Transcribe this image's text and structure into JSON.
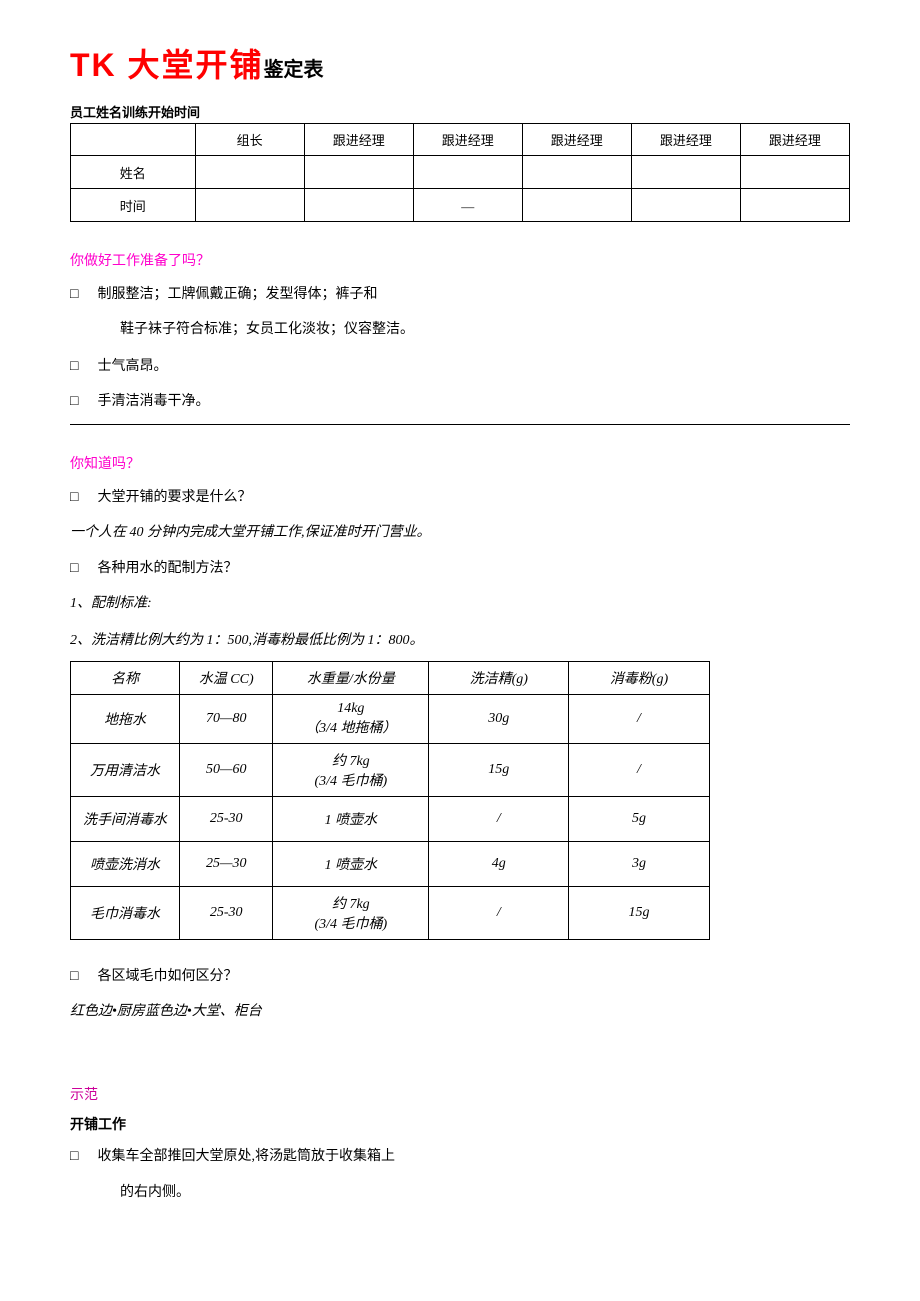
{
  "title": {
    "red": "TK 大堂开铺",
    "black": "鉴定表"
  },
  "subtitle": "员工姓名训练开始时间",
  "header_table": {
    "columns": [
      "",
      "组长",
      "跟进经理",
      "跟进经理",
      "跟进经理",
      "跟进经理",
      "跟进经理"
    ],
    "row1_label": "姓名",
    "row2_label": "时间",
    "dash": "—"
  },
  "section1": {
    "title": "你做好工作准备了吗？",
    "items": [
      "制服整洁；工牌佩戴正确；发型得体；裤子和",
      "士气高昂。",
      "手清洁消毒干净。"
    ],
    "item1_cont": "鞋子袜子符合标准；女员工化淡妆；仪容整洁。"
  },
  "section2": {
    "title": "你知道吗？",
    "q1": "大堂开铺的要求是什么？",
    "a1": "一个人在 40 分钟内完成大堂开铺工作,保证准时开门营业。",
    "q2": "各种用水的配制方法？",
    "note1": "1、配制标准:",
    "note2": "2、洗洁精比例大约为 1：500,消毒粉最低比例为 1：800。",
    "table": {
      "columns": [
        "名称",
        "水温 CC)",
        "水重量/水份量",
        "洗洁精(g)",
        "消毒粉(g)"
      ],
      "rows": [
        [
          "地拖水",
          "70—80",
          "14kg\n（3/4 地拖桶）",
          "30g",
          "/"
        ],
        [
          "万用清洁水",
          "50—60",
          "约 7kg\n(3/4 毛巾桶)",
          "15g",
          "/"
        ],
        [
          "洗手间消毒水",
          "25-30",
          "1 喷壶水",
          "/",
          "5g"
        ],
        [
          "喷壶洗消水",
          "25—30",
          "1 喷壶水",
          "4g",
          "3g"
        ],
        [
          "毛巾消毒水",
          "25-30",
          "约 7kg\n(3/4 毛巾桶)",
          "/",
          "15g"
        ]
      ]
    },
    "q3": "各区域毛巾如何区分？",
    "a3": "红色边•厨房蓝色边•大堂、柜台"
  },
  "section3": {
    "title": "示范",
    "subtitle": "开铺工作",
    "item1": "收集车全部推回大堂原处,将汤匙筒放于收集箱上",
    "item1_cont": "的右内侧。"
  },
  "checkbox_char": "□"
}
